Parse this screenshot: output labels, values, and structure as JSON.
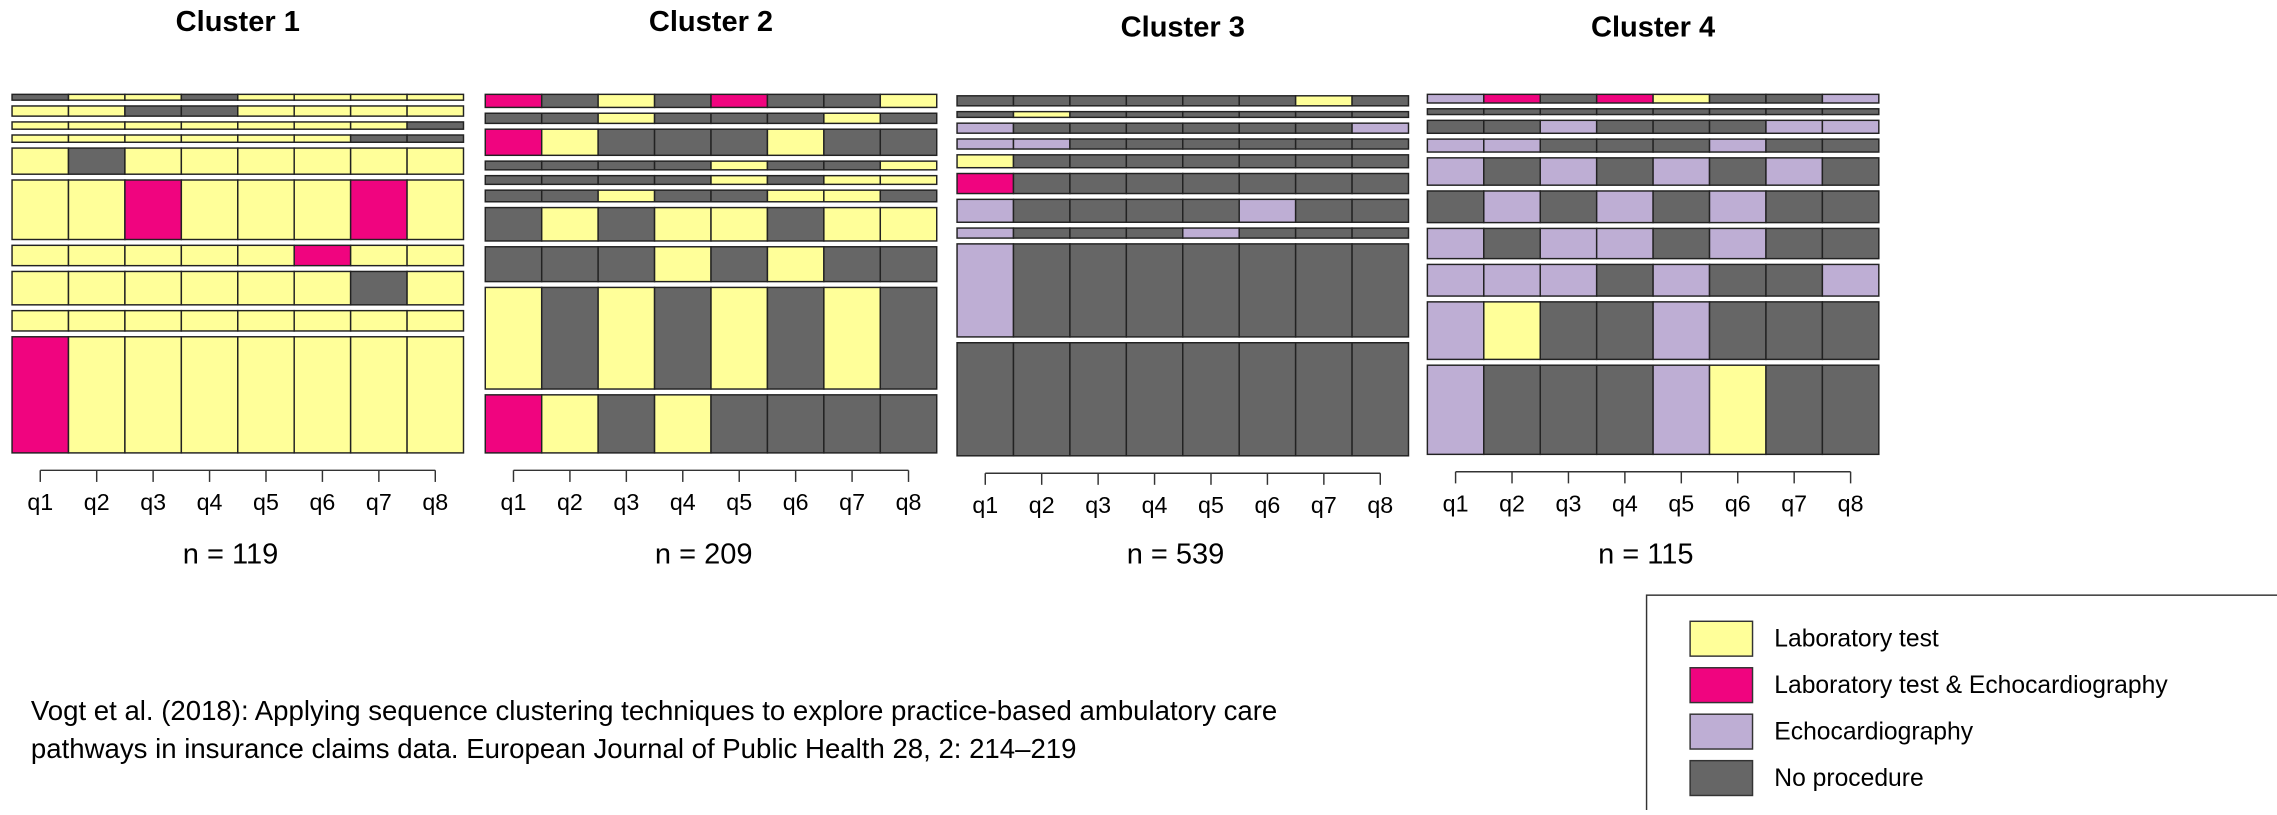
{
  "chart_data": {
    "type": "sequence-frequency",
    "states": [
      {
        "name": "Laboratory test",
        "color": "#ffff99"
      },
      {
        "name": "Laboratory test & Echocardiography",
        "color": "#f0047f"
      },
      {
        "name": "Echocardiography",
        "color": "#beaed4"
      },
      {
        "name": "No procedure",
        "color": "#666666"
      }
    ],
    "categories": [
      "q1",
      "q2",
      "q3",
      "q4",
      "q5",
      "q6",
      "q7",
      "q8"
    ],
    "clusters": [
      {
        "title": "Cluster 1",
        "n_label": "n = 119",
        "sequences": [
          {
            "freq": 4,
            "states": [
              3,
              0,
              0,
              3,
              0,
              0,
              0,
              0
            ]
          },
          {
            "freq": 7,
            "states": [
              0,
              0,
              3,
              3,
              0,
              0,
              0,
              0
            ]
          },
          {
            "freq": 5,
            "states": [
              0,
              0,
              0,
              0,
              0,
              0,
              0,
              3
            ]
          },
          {
            "freq": 5,
            "states": [
              0,
              0,
              0,
              0,
              0,
              0,
              3,
              3
            ]
          },
          {
            "freq": 18,
            "states": [
              0,
              3,
              0,
              0,
              0,
              0,
              0,
              0
            ]
          },
          {
            "freq": 41,
            "states": [
              0,
              0,
              1,
              0,
              0,
              0,
              1,
              0
            ]
          },
          {
            "freq": 14,
            "states": [
              0,
              0,
              0,
              0,
              0,
              1,
              0,
              0
            ]
          },
          {
            "freq": 23,
            "states": [
              0,
              0,
              0,
              0,
              0,
              0,
              3,
              0
            ]
          },
          {
            "freq": 14,
            "states": [
              0,
              0,
              0,
              0,
              0,
              0,
              0,
              0
            ]
          },
          {
            "freq": 80,
            "states": [
              1,
              0,
              0,
              0,
              0,
              0,
              0,
              0
            ]
          }
        ]
      },
      {
        "title": "Cluster 2",
        "n_label": "n = 209",
        "sequences": [
          {
            "freq": 9,
            "states": [
              1,
              3,
              0,
              3,
              1,
              3,
              3,
              0
            ]
          },
          {
            "freq": 7,
            "states": [
              3,
              3,
              0,
              3,
              3,
              3,
              0,
              3
            ]
          },
          {
            "freq": 18,
            "states": [
              1,
              0,
              3,
              3,
              3,
              0,
              3,
              3
            ]
          },
          {
            "freq": 6,
            "states": [
              3,
              3,
              3,
              3,
              0,
              3,
              3,
              0
            ]
          },
          {
            "freq": 6,
            "states": [
              3,
              3,
              3,
              3,
              0,
              3,
              0,
              0
            ]
          },
          {
            "freq": 8,
            "states": [
              3,
              3,
              0,
              3,
              3,
              0,
              0,
              3
            ]
          },
          {
            "freq": 23,
            "states": [
              3,
              0,
              3,
              0,
              0,
              3,
              0,
              0
            ]
          },
          {
            "freq": 24,
            "states": [
              3,
              3,
              3,
              0,
              3,
              0,
              3,
              3
            ]
          },
          {
            "freq": 70,
            "states": [
              0,
              3,
              0,
              3,
              0,
              3,
              0,
              3
            ]
          },
          {
            "freq": 40,
            "states": [
              1,
              0,
              3,
              0,
              3,
              3,
              3,
              3
            ]
          }
        ]
      },
      {
        "title": "Cluster 3",
        "n_label": "n = 539",
        "sequences": [
          {
            "freq": 7,
            "states": [
              3,
              3,
              3,
              3,
              3,
              3,
              0,
              3
            ]
          },
          {
            "freq": 4,
            "states": [
              3,
              0,
              3,
              3,
              3,
              3,
              3,
              3
            ]
          },
          {
            "freq": 7,
            "states": [
              2,
              3,
              3,
              3,
              3,
              3,
              3,
              2
            ]
          },
          {
            "freq": 7,
            "states": [
              2,
              2,
              3,
              3,
              3,
              3,
              3,
              3
            ]
          },
          {
            "freq": 9,
            "states": [
              0,
              3,
              3,
              3,
              3,
              3,
              3,
              3
            ]
          },
          {
            "freq": 14,
            "states": [
              1,
              3,
              3,
              3,
              3,
              3,
              3,
              3
            ]
          },
          {
            "freq": 16,
            "states": [
              2,
              3,
              3,
              3,
              3,
              2,
              3,
              3
            ]
          },
          {
            "freq": 7,
            "states": [
              2,
              3,
              3,
              3,
              2,
              3,
              3,
              3
            ]
          },
          {
            "freq": 65,
            "states": [
              2,
              3,
              3,
              3,
              3,
              3,
              3,
              3
            ]
          },
          {
            "freq": 79,
            "states": [
              3,
              3,
              3,
              3,
              3,
              3,
              3,
              3
            ]
          }
        ]
      },
      {
        "title": "Cluster 4",
        "n_label": "n = 115",
        "sequences": [
          {
            "freq": 6,
            "states": [
              2,
              1,
              3,
              1,
              0,
              3,
              3,
              2
            ]
          },
          {
            "freq": 4,
            "states": [
              3,
              3,
              3,
              3,
              3,
              3,
              3,
              3
            ]
          },
          {
            "freq": 9,
            "states": [
              3,
              3,
              2,
              3,
              3,
              3,
              2,
              2
            ]
          },
          {
            "freq": 9,
            "states": [
              2,
              2,
              3,
              3,
              3,
              2,
              3,
              3
            ]
          },
          {
            "freq": 19,
            "states": [
              2,
              3,
              2,
              3,
              2,
              3,
              2,
              3
            ]
          },
          {
            "freq": 22,
            "states": [
              3,
              2,
              3,
              2,
              3,
              2,
              3,
              3
            ]
          },
          {
            "freq": 21,
            "states": [
              2,
              3,
              2,
              2,
              3,
              2,
              3,
              3
            ]
          },
          {
            "freq": 22,
            "states": [
              2,
              2,
              2,
              3,
              2,
              3,
              3,
              2
            ]
          },
          {
            "freq": 40,
            "states": [
              2,
              0,
              3,
              3,
              2,
              3,
              3,
              3
            ]
          },
          {
            "freq": 62,
            "states": [
              2,
              3,
              3,
              3,
              2,
              0,
              3,
              3
            ]
          }
        ]
      }
    ],
    "citation": [
      "Vogt et al. (2018): Applying sequence clustering techniques to explore practice-based ambulatory care",
      "pathways in insurance claims data. European Journal of Public Health 28, 2: 214–219"
    ]
  }
}
